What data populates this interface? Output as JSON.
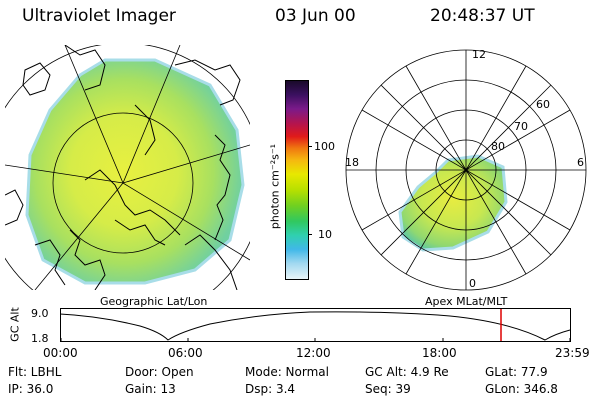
{
  "header": {
    "title": "Ultraviolet Imager",
    "date": "03 Jun 00",
    "time": "20:48:37 UT"
  },
  "colorbar": {
    "label": "photon cm⁻²s⁻¹",
    "ticks": [
      "100",
      "10"
    ],
    "colors": [
      "#1a0a2a",
      "#3b1060",
      "#7a1a8a",
      "#b8144a",
      "#e01a1a",
      "#f07810",
      "#f5b810",
      "#e8e800",
      "#b8e000",
      "#70d020",
      "#30c860",
      "#30d0b0",
      "#40b8e8",
      "#a0d8f0",
      "#e8f4f8"
    ]
  },
  "geo_panel": {
    "label": "Geographic Lat/Lon",
    "land_color": "#c8ec5a",
    "glow_color": "#7ad09a"
  },
  "mag_panel": {
    "label": "Apex MLat/MLT",
    "mlt_labels": [
      "12",
      "18",
      "6",
      "0"
    ],
    "lat_labels": [
      "60",
      "70",
      "80"
    ]
  },
  "altitude_plot": {
    "axis_title": "GC Alt",
    "y_ticks": [
      "9.0",
      "1.8"
    ],
    "x_ticks": [
      "00:00",
      "06:00",
      "12:00",
      "18:00",
      "23:59"
    ],
    "marker_color": "#dd0000"
  },
  "footer": {
    "row1": {
      "filter": "Flt:  LBHL",
      "door": "Door:  Open",
      "mode": "Mode:  Normal",
      "gc_alt": "GC Alt:  4.9 Re",
      "glat": "GLat:  77.9"
    },
    "row2": {
      "ip": "IP:  36.0",
      "gain": "Gain:  13",
      "dsp": "Dsp:     3.4",
      "seq": "Seq:  39",
      "glon": "GLon:  346.8"
    }
  }
}
